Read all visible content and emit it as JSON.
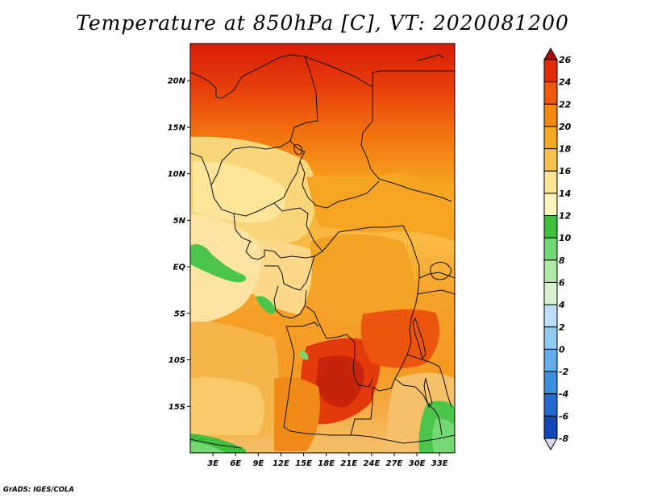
{
  "title": "Temperature at 850hPa [C], VT: 2020081200",
  "credit": "GrADS: IGES/COLA",
  "map": {
    "variable": "Temperature at 850hPa",
    "units": "C",
    "valid_time": "2020081200",
    "lon_range": [
      0,
      35
    ],
    "lat_range": [
      -20,
      24
    ],
    "lat_labels": [
      {
        "value": 20,
        "label": "20N"
      },
      {
        "value": 15,
        "label": "15N"
      },
      {
        "value": 10,
        "label": "10N"
      },
      {
        "value": 5,
        "label": "5N"
      },
      {
        "value": 0,
        "label": "EQ"
      },
      {
        "value": -5,
        "label": "5S"
      },
      {
        "value": -10,
        "label": "10S"
      },
      {
        "value": -15,
        "label": "15S"
      }
    ],
    "lon_labels": [
      {
        "value": 3,
        "label": "3E"
      },
      {
        "value": 6,
        "label": "6E"
      },
      {
        "value": 9,
        "label": "9E"
      },
      {
        "value": 12,
        "label": "12E"
      },
      {
        "value": 15,
        "label": "15E"
      },
      {
        "value": 18,
        "label": "18E"
      },
      {
        "value": 21,
        "label": "21E"
      },
      {
        "value": 24,
        "label": "24E"
      },
      {
        "value": 27,
        "label": "27E"
      },
      {
        "value": 30,
        "label": "30E"
      },
      {
        "value": 33,
        "label": "33E"
      }
    ]
  },
  "colorbar": {
    "labels": [
      "26",
      "24",
      "22",
      "20",
      "18",
      "16",
      "14",
      "12",
      "10",
      "8",
      "6",
      "4",
      "2",
      "0",
      "-2",
      "-4",
      "-6",
      "-8"
    ],
    "colors": [
      "#a50b0b",
      "#e22b09",
      "#ef5b0e",
      "#f4890f",
      "#f6a925",
      "#f8c253",
      "#fde494",
      "#fdf5c0",
      "#3ebf3e",
      "#74d874",
      "#aeeaa6",
      "#d8f3d0",
      "#bde0f7",
      "#92c9f1",
      "#65acea",
      "#3e8edf",
      "#2468d1",
      "#1346b9",
      "#082a86",
      "#ddd9f2"
    ]
  }
}
